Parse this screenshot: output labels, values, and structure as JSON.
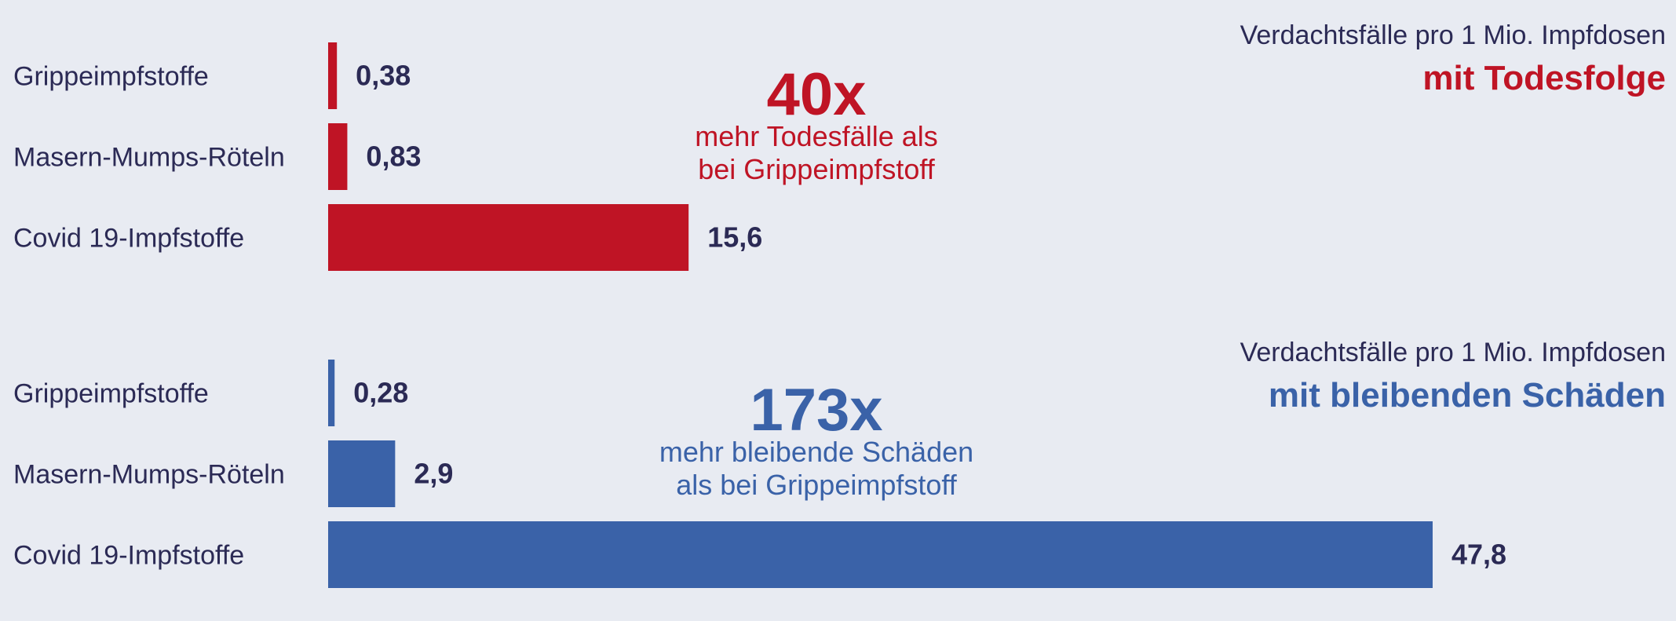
{
  "colors": {
    "background": "#e8ebf2",
    "text": "#2b2a55",
    "red": "#bf1425",
    "blue": "#3a62a8"
  },
  "chart_data": [
    {
      "type": "bar",
      "orientation": "horizontal",
      "categories": [
        "Grippeimpfstoffe",
        "Masern-Mumps-Röteln",
        "Covid 19-Impfstoffe"
      ],
      "values": [
        0.38,
        0.83,
        15.6
      ],
      "value_labels": [
        "0,38",
        "0,83",
        "15,6"
      ],
      "xlim": [
        0,
        47.8
      ],
      "color": "#bf1425",
      "subtitle": "Verdachtsfälle pro 1 Mio. Impfdosen",
      "title": "mit Todesfolge",
      "annotation": {
        "big": "40x",
        "line1": "mehr Todesfälle als",
        "line2": "bei Grippeimpfstoff"
      }
    },
    {
      "type": "bar",
      "orientation": "horizontal",
      "categories": [
        "Grippeimpfstoffe",
        "Masern-Mumps-Röteln",
        "Covid 19-Impfstoffe"
      ],
      "values": [
        0.28,
        2.9,
        47.8
      ],
      "value_labels": [
        "0,28",
        "2,9",
        "47,8"
      ],
      "xlim": [
        0,
        47.8
      ],
      "color": "#3a62a8",
      "subtitle": "Verdachtsfälle  pro 1 Mio. Impfdosen",
      "title": "mit bleibenden Schäden",
      "annotation": {
        "big": "173x",
        "line1": "mehr bleibende Schäden",
        "line2": "als bei Grippeimpfstoff"
      }
    }
  ]
}
